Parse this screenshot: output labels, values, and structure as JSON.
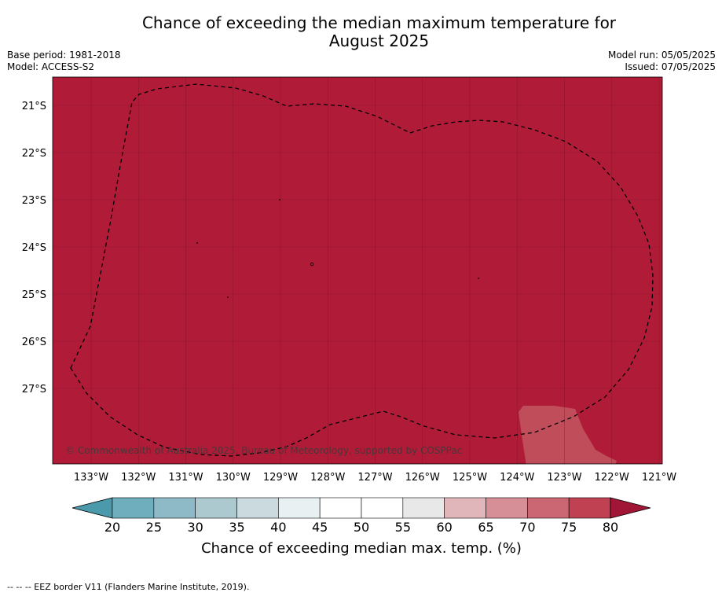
{
  "title_line1": "Chance of exceeding the median maximum temperature for",
  "title_line2": "August 2025",
  "base_period": "Base period: 1981-2018",
  "model": "Model: ACCESS-S2",
  "model_run": "Model run: 05/05/2025",
  "issued": "Issued: 07/05/2025",
  "copyright": "© Commonwealth of Australia 2025, Bureau of Meteorology, supported by COSPPac",
  "lat_labels": [
    "21°S",
    "22°S",
    "23°S",
    "24°S",
    "25°S",
    "26°S",
    "27°S"
  ],
  "lon_labels": [
    "133°W",
    "132°W",
    "131°W",
    "130°W",
    "129°W",
    "128°W",
    "127°W",
    "126°W",
    "125°W",
    "124°W",
    "123°W",
    "122°W",
    "121°W"
  ],
  "colorbar": {
    "ticks": [
      "20",
      "25",
      "30",
      "35",
      "40",
      "45",
      "50",
      "55",
      "60",
      "65",
      "70",
      "75",
      "80"
    ],
    "colors": [
      "#6eaebd",
      "#8dbac6",
      "#abc9cf",
      "#cbdadf",
      "#e9f0f2",
      "#ffffff",
      "#ffffff",
      "#e8e8e8",
      "#e0b6bb",
      "#d68f97",
      "#ca6772",
      "#bf4152"
    ],
    "under_color": "#4a9aab",
    "over_color": "#a11636",
    "label": "Chance of exceeding median max. temp. (%)"
  },
  "map_colors": {
    "main": "#b01c38",
    "lighter_patch": "#c04e5a"
  },
  "legend_note": "--  --  -- EEZ border V11 (Flanders Marine Institute, 2019)."
}
